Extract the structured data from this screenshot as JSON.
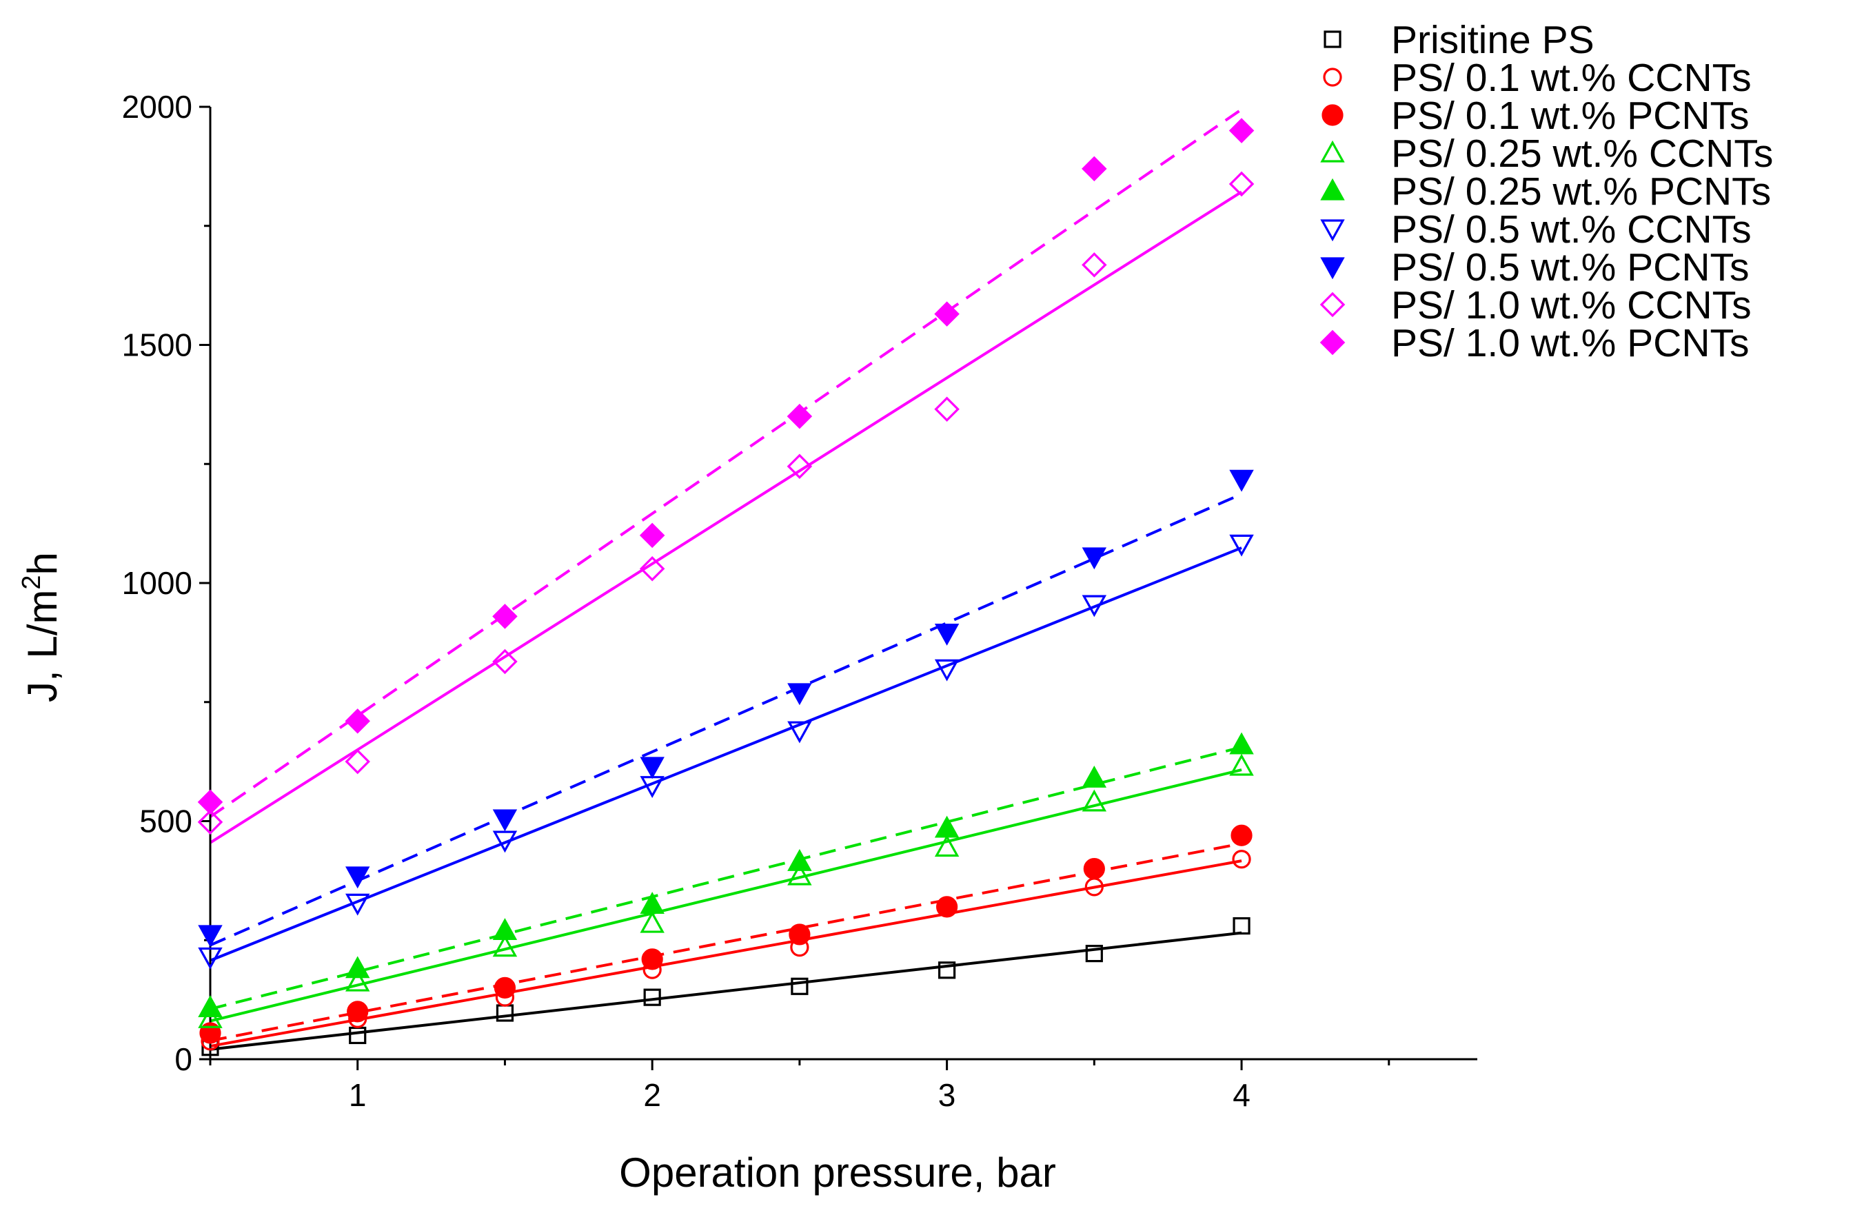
{
  "chart_data": {
    "type": "scatter",
    "title": "",
    "xlabel": "Operation pressure, bar",
    "ylabel": {
      "prefix": "J, L/m",
      "sup": "2",
      "suffix": "h"
    },
    "xlim": [
      0.5,
      4.8
    ],
    "ylim": [
      0,
      2000
    ],
    "xticks": [
      "1",
      "2",
      "3",
      "4"
    ],
    "yticks": [
      "0",
      "500",
      "1000",
      "1500",
      "2000"
    ],
    "grid": false,
    "legend_position": "top-right, outside plot",
    "x": [
      0.5,
      1,
      1.5,
      2,
      2.5,
      3,
      3.5,
      4
    ],
    "series": [
      {
        "name": "Prisitine PS",
        "color": "#000000",
        "marker": "square",
        "filled": false,
        "fit": "solid",
        "values": [
          25,
          50,
          97,
          130,
          153,
          187,
          222,
          280
        ]
      },
      {
        "name": "PS/ 0.1 wt.%  CCNTs",
        "color": "#ff0000",
        "marker": "circle",
        "filled": false,
        "fit": "solid",
        "values": [
          38,
          85,
          130,
          188,
          235,
          318,
          362,
          420
        ]
      },
      {
        "name": "PS/ 0.1 wt.% PCNTs",
        "color": "#ff0000",
        "marker": "circle",
        "filled": true,
        "fit": "dashed",
        "values": [
          55,
          100,
          150,
          210,
          262,
          320,
          400,
          470
        ]
      },
      {
        "name": "PS/ 0.25  wt.% CCNTs",
        "color": "#00e000",
        "marker": "triangle-up",
        "filled": false,
        "fit": "solid",
        "values": [
          85,
          162,
          235,
          285,
          385,
          445,
          540,
          615
        ]
      },
      {
        "name": "PS/ 0.25  wt.% PCNTs",
        "color": "#00e000",
        "marker": "triangle-up",
        "filled": true,
        "fit": "dashed",
        "values": [
          108,
          190,
          270,
          325,
          415,
          485,
          590,
          660
        ]
      },
      {
        "name": "PS/ 0.5  wt.% CCNTs",
        "color": "#0000ff",
        "marker": "triangle-down",
        "filled": false,
        "fit": "solid",
        "values": [
          215,
          328,
          460,
          575,
          690,
          820,
          955,
          1082
        ]
      },
      {
        "name": "PS/ 0.5  wt.% PCNTs",
        "color": "#0000ff",
        "marker": "triangle-down",
        "filled": true,
        "fit": "dashed",
        "values": [
          262,
          385,
          505,
          615,
          770,
          895,
          1055,
          1218
        ]
      },
      {
        "name": "PS/ 1.0  wt.% CCNTs",
        "color": "#ff00ff",
        "marker": "diamond",
        "filled": false,
        "fit": "solid",
        "values": [
          498,
          625,
          835,
          1030,
          1245,
          1365,
          1668,
          1838
        ]
      },
      {
        "name": "PS/ 1.0  wt.% PCNTs",
        "color": "#ff00ff",
        "marker": "diamond",
        "filled": true,
        "fit": "dashed",
        "values": [
          540,
          710,
          930,
          1100,
          1350,
          1565,
          1870,
          1950
        ]
      }
    ]
  }
}
